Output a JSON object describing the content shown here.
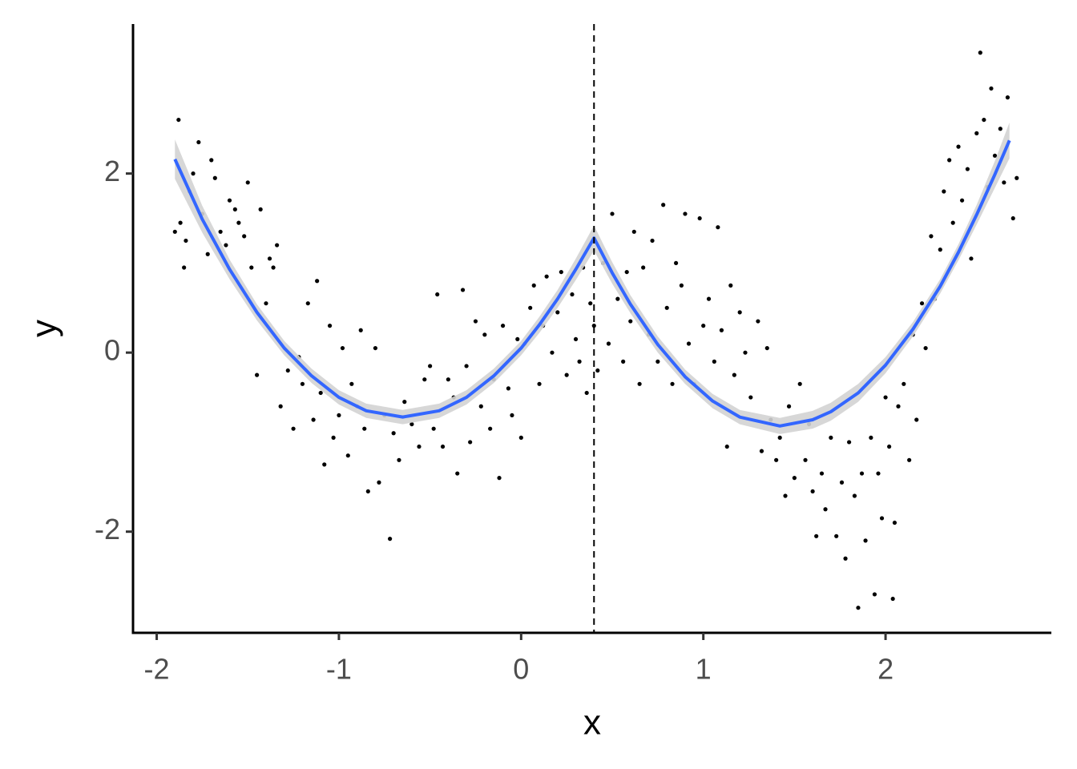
{
  "chart_data": {
    "type": "scatter",
    "x_label": "x",
    "y_label": "y",
    "xlim": [
      -2.13,
      2.91
    ],
    "ylim": [
      -3.13,
      3.67
    ],
    "xticks": [
      -2,
      -1,
      0,
      1,
      2
    ],
    "yticks": [
      -2,
      0,
      2
    ],
    "grid": false,
    "points": {
      "color": "#000000",
      "x": [
        -1.9,
        -1.88,
        -1.87,
        -1.85,
        -1.84,
        -1.82,
        -1.8,
        -1.77,
        -1.75,
        -1.72,
        -1.7,
        -1.68,
        -1.65,
        -1.62,
        -1.6,
        -1.57,
        -1.55,
        -1.52,
        -1.5,
        -1.48,
        -1.45,
        -1.43,
        -1.4,
        -1.38,
        -1.36,
        -1.34,
        -1.32,
        -1.28,
        -1.25,
        -1.22,
        -1.2,
        -1.17,
        -1.14,
        -1.12,
        -1.1,
        -1.08,
        -1.05,
        -1.03,
        -1.0,
        -0.98,
        -0.95,
        -0.93,
        -0.9,
        -0.88,
        -0.86,
        -0.84,
        -0.8,
        -0.78,
        -0.75,
        -0.72,
        -0.7,
        -0.67,
        -0.64,
        -0.6,
        -0.56,
        -0.53,
        -0.5,
        -0.48,
        -0.46,
        -0.43,
        -0.4,
        -0.37,
        -0.35,
        -0.32,
        -0.3,
        -0.28,
        -0.25,
        -0.22,
        -0.2,
        -0.17,
        -0.15,
        -0.12,
        -0.1,
        -0.07,
        -0.05,
        -0.02,
        0.0,
        0.02,
        0.05,
        0.07,
        0.1,
        0.12,
        0.14,
        0.17,
        0.2,
        0.22,
        0.25,
        0.28,
        0.3,
        0.32,
        0.34,
        0.36,
        0.38,
        0.4,
        0.42,
        0.45,
        0.48,
        0.5,
        0.53,
        0.56,
        0.58,
        0.6,
        0.62,
        0.65,
        0.67,
        0.7,
        0.72,
        0.75,
        0.78,
        0.8,
        0.83,
        0.85,
        0.88,
        0.9,
        0.92,
        0.95,
        0.98,
        1.0,
        1.03,
        1.06,
        1.08,
        1.1,
        1.13,
        1.15,
        1.17,
        1.2,
        1.23,
        1.26,
        1.3,
        1.32,
        1.35,
        1.37,
        1.4,
        1.42,
        1.45,
        1.47,
        1.5,
        1.53,
        1.56,
        1.58,
        1.6,
        1.62,
        1.65,
        1.67,
        1.7,
        1.73,
        1.76,
        1.78,
        1.8,
        1.83,
        1.85,
        1.87,
        1.89,
        1.92,
        1.94,
        1.96,
        1.98,
        2.0,
        2.02,
        2.04,
        2.05,
        2.07,
        2.1,
        2.13,
        2.15,
        2.17,
        2.2,
        2.22,
        2.25,
        2.27,
        2.3,
        2.32,
        2.35,
        2.37,
        2.4,
        2.42,
        2.45,
        2.47,
        2.5,
        2.52,
        2.54,
        2.56,
        2.58,
        2.6,
        2.63,
        2.65,
        2.67,
        2.7,
        2.72
      ],
      "y": [
        1.35,
        2.6,
        1.45,
        0.95,
        1.25,
        1.8,
        2.0,
        2.35,
        1.55,
        1.1,
        2.15,
        1.95,
        1.35,
        1.2,
        1.7,
        1.6,
        1.45,
        1.3,
        1.9,
        0.95,
        -0.25,
        1.6,
        0.55,
        1.05,
        0.95,
        1.2,
        -0.6,
        -0.2,
        -0.85,
        -0.05,
        -0.35,
        0.55,
        -0.75,
        0.8,
        -0.45,
        -1.25,
        0.3,
        -0.95,
        -0.7,
        0.05,
        -1.15,
        -0.35,
        -0.6,
        0.25,
        -0.85,
        -1.55,
        0.05,
        -1.45,
        -0.7,
        -2.08,
        -0.9,
        -1.2,
        -0.55,
        -0.8,
        -1.05,
        -0.3,
        -0.15,
        -0.85,
        0.65,
        -1.05,
        -0.3,
        -0.5,
        -1.35,
        0.7,
        -0.15,
        -1.0,
        0.35,
        -0.6,
        0.2,
        -0.85,
        -0.3,
        -1.4,
        0.3,
        -0.4,
        -0.7,
        0.15,
        -0.95,
        0.1,
        0.5,
        0.75,
        -0.35,
        0.3,
        0.85,
        0.0,
        0.45,
        0.9,
        -0.25,
        0.65,
        0.15,
        -0.1,
        0.95,
        -0.45,
        0.55,
        0.3,
        -0.2,
        1.0,
        0.1,
        1.55,
        0.6,
        -0.1,
        0.9,
        0.35,
        1.35,
        -0.35,
        0.95,
        0.2,
        1.25,
        -0.1,
        1.65,
        0.5,
        -0.35,
        1.0,
        0.75,
        1.55,
        0.1,
        -0.35,
        1.5,
        0.3,
        0.6,
        -0.1,
        1.4,
        0.25,
        -1.05,
        0.75,
        -0.25,
        0.45,
        0.0,
        -0.5,
        0.35,
        -1.1,
        0.05,
        -0.75,
        -1.2,
        -0.95,
        -1.6,
        -0.6,
        -1.4,
        -0.35,
        -1.2,
        -0.8,
        -1.55,
        -2.05,
        -1.35,
        -1.75,
        -0.95,
        -2.05,
        -1.45,
        -2.3,
        -1.0,
        -1.6,
        -2.85,
        -1.35,
        -2.1,
        -0.95,
        -2.7,
        -1.35,
        -1.85,
        -0.5,
        -1.05,
        -2.75,
        -1.9,
        -0.6,
        -0.35,
        -1.2,
        0.2,
        -0.75,
        0.55,
        0.05,
        1.3,
        0.6,
        1.15,
        1.8,
        2.15,
        1.45,
        2.3,
        1.7,
        2.05,
        1.05,
        2.45,
        3.35,
        2.6,
        1.85,
        2.95,
        2.2,
        2.5,
        1.9,
        2.85,
        1.5,
        1.95
      ]
    },
    "fit": {
      "color": "#3366ff",
      "band_color": "#d3d3d3",
      "x": [
        -1.9,
        -1.75,
        -1.6,
        -1.45,
        -1.3,
        -1.15,
        -1.0,
        -0.85,
        -0.65,
        -0.45,
        -0.3,
        -0.15,
        0,
        0.1,
        0.2,
        0.3,
        0.4,
        0.5,
        0.6,
        0.75,
        0.9,
        1.05,
        1.2,
        1.42,
        1.6,
        1.7,
        1.85,
        2.0,
        2.15,
        2.3,
        2.4,
        2.5,
        2.6,
        2.68
      ],
      "y": [
        2.16,
        1.49,
        0.93,
        0.45,
        0.05,
        -0.26,
        -0.5,
        -0.65,
        -0.72,
        -0.65,
        -0.5,
        -0.26,
        0.05,
        0.31,
        0.6,
        0.93,
        1.28,
        0.89,
        0.54,
        0.09,
        -0.27,
        -0.54,
        -0.72,
        -0.82,
        -0.75,
        -0.66,
        -0.45,
        -0.14,
        0.26,
        0.74,
        1.12,
        1.54,
        1.99,
        2.37
      ],
      "lower": [
        1.94,
        1.34,
        0.82,
        0.36,
        -0.03,
        -0.34,
        -0.58,
        -0.73,
        -0.8,
        -0.73,
        -0.58,
        -0.34,
        -0.03,
        0.22,
        0.5,
        0.81,
        1.14,
        0.77,
        0.44,
        0.0,
        -0.35,
        -0.62,
        -0.8,
        -0.91,
        -0.85,
        -0.76,
        -0.55,
        -0.23,
        0.18,
        0.66,
        1.03,
        1.43,
        1.84,
        2.17
      ],
      "upper": [
        2.38,
        1.64,
        1.04,
        0.54,
        0.13,
        -0.18,
        -0.42,
        -0.57,
        -0.64,
        -0.57,
        -0.42,
        -0.18,
        0.13,
        0.4,
        0.7,
        1.05,
        1.42,
        1.01,
        0.64,
        0.18,
        -0.19,
        -0.46,
        -0.64,
        -0.73,
        -0.65,
        -0.56,
        -0.35,
        -0.05,
        0.34,
        0.82,
        1.21,
        1.65,
        2.14,
        2.57
      ]
    },
    "vline": {
      "x": 0.4,
      "style": "dashed",
      "color": "#000000"
    }
  }
}
